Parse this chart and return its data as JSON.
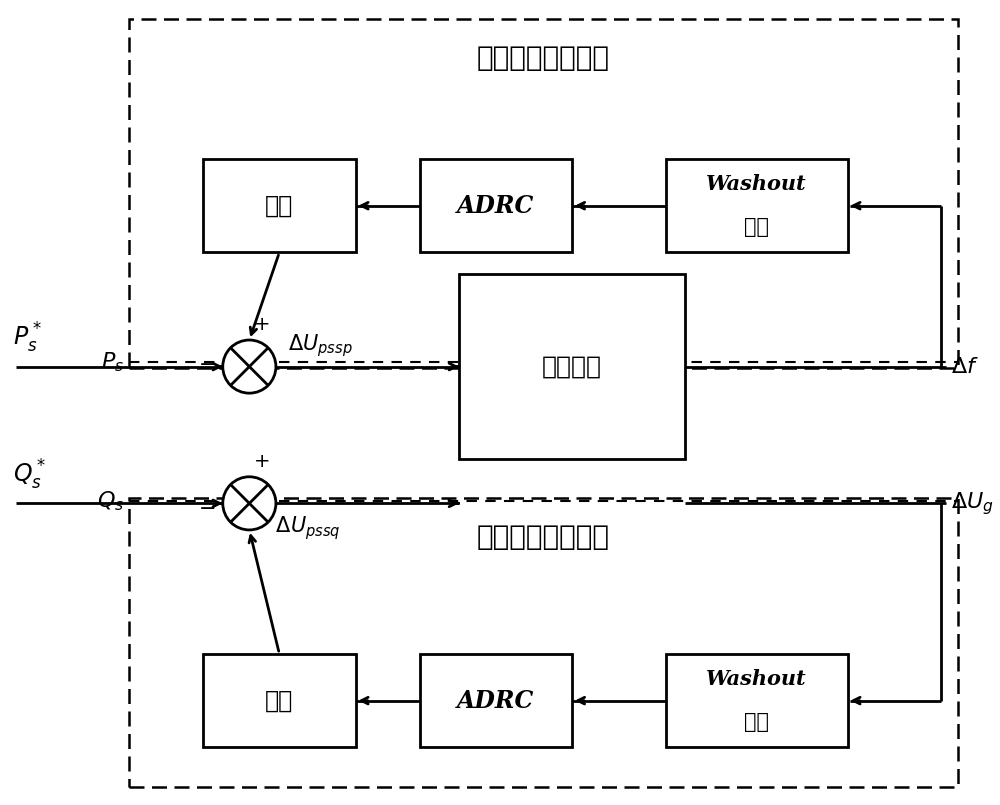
{
  "bg_color": "#ffffff",
  "title_top": "有功附加阻尼控制",
  "title_bottom": "无功附加阻尼控制",
  "box_plant": "被控对象",
  "box_limiter1": "限幅",
  "box_limiter2": "限幅",
  "box_adrc1": "ADRC",
  "box_adrc2": "ADRC",
  "box_washout1_line1": "Washout",
  "box_washout1_line2": "环节",
  "box_washout2_line1": "Washout",
  "box_washout2_line2": "环节",
  "figsize": [
    10.0,
    8.05
  ],
  "dpi": 100,
  "lw": 2.0,
  "lw_dash": 1.8,
  "fs_cn": 17,
  "fs_math": 14
}
